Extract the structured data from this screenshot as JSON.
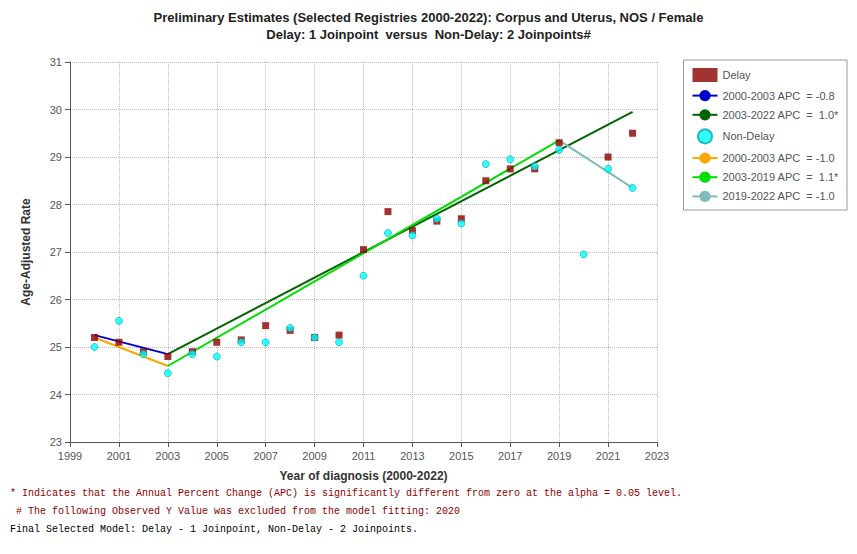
{
  "chart_data": {
    "type": "scatter",
    "title": "Preliminary Estimates (Selected Registries 2000-2022): Corpus and Uterus, NOS / Female",
    "subtitle": "Delay: 1 Joinpoint  versus  Non-Delay: 2 Joinpoints#",
    "xlabel": "Year of diagnosis (2000-2022)",
    "ylabel": "Age-Adjusted Rate",
    "xlim": [
      1999,
      2023
    ],
    "ylim": [
      23,
      31
    ],
    "xticks": [
      1999,
      2001,
      2003,
      2005,
      2007,
      2009,
      2011,
      2013,
      2015,
      2017,
      2019,
      2021,
      2023
    ],
    "yticks": [
      23,
      24,
      25,
      26,
      27,
      28,
      29,
      30,
      31
    ],
    "grid": true,
    "legend": "right",
    "series": [
      {
        "name": "Delay",
        "type": "scatter",
        "marker": "square",
        "color": "#8B0000",
        "x": [
          2000,
          2001,
          2002,
          2003,
          2004,
          2005,
          2006,
          2007,
          2008,
          2009,
          2010,
          2011,
          2012,
          2013,
          2014,
          2015,
          2016,
          2017,
          2018,
          2019,
          2021,
          2022
        ],
        "values": [
          25.2,
          25.1,
          24.9,
          24.8,
          24.9,
          25.1,
          25.15,
          25.45,
          25.35,
          25.2,
          25.25,
          27.05,
          27.85,
          27.45,
          27.65,
          27.7,
          28.5,
          28.75,
          28.75,
          29.3,
          29.0,
          29.5
        ]
      },
      {
        "name": "2000-2003 APC  = -0.8",
        "type": "line",
        "color": "#0000CD",
        "x": [
          2000,
          2003
        ],
        "values": [
          25.25,
          24.85
        ]
      },
      {
        "name": "2003-2022 APC  =  1.0*",
        "type": "line",
        "color": "#006400",
        "x": [
          2003,
          2022
        ],
        "values": [
          24.85,
          29.95
        ]
      },
      {
        "name": "Non-Delay",
        "type": "scatter",
        "marker": "circle",
        "color": "#00FFFF",
        "x": [
          2000,
          2001,
          2002,
          2003,
          2004,
          2005,
          2006,
          2007,
          2008,
          2009,
          2010,
          2011,
          2012,
          2013,
          2014,
          2015,
          2016,
          2017,
          2018,
          2019,
          2020,
          2021,
          2022
        ],
        "values": [
          25.0,
          25.55,
          24.85,
          24.45,
          24.85,
          24.8,
          25.1,
          25.1,
          25.4,
          25.2,
          25.1,
          26.5,
          27.4,
          27.35,
          27.7,
          27.6,
          28.85,
          28.95,
          28.8,
          29.15,
          26.95,
          28.75,
          28.35
        ]
      },
      {
        "name": "2000-2003 APC  = -1.0",
        "type": "line",
        "color": "#FFA500",
        "x": [
          2000,
          2003
        ],
        "values": [
          25.2,
          24.6
        ]
      },
      {
        "name": "2003-2019 APC  =  1.1*",
        "type": "line",
        "color": "#00DD00",
        "x": [
          2003,
          2019
        ],
        "values": [
          24.6,
          29.35
        ]
      },
      {
        "name": "2019-2022 APC  = -1.0",
        "type": "line",
        "color": "#7FBBBB",
        "x": [
          2019,
          2022
        ],
        "values": [
          29.35,
          28.35
        ]
      }
    ],
    "annotations": [
      {
        "text": "* Indicates that the Annual Percent Change (APC) is significantly different from zero at the alpha = 0.05 level.",
        "color": "#8B0000"
      },
      {
        "text": " # The following Observed Y Value was excluded from the model fitting: 2020",
        "color": "#8B0000"
      },
      {
        "text": "Final Selected Model: Delay - 1 Joinpoint, Non-Delay - 2 Joinpoints.",
        "color": "#000000"
      }
    ]
  }
}
